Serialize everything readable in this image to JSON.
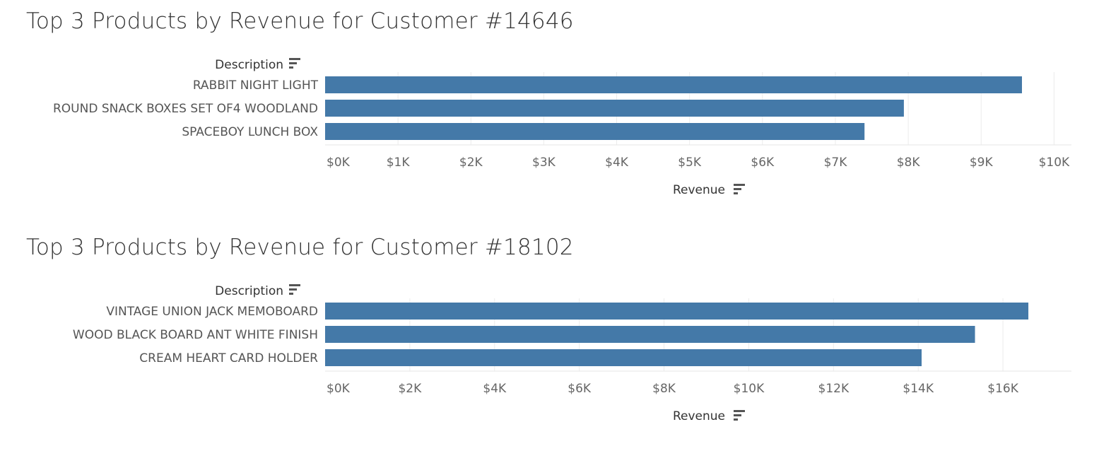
{
  "chart_data": [
    {
      "type": "bar",
      "orientation": "horizontal",
      "title": "Top 3 Products by Revenue for Customer #14646",
      "ylabel": "Description",
      "xlabel": "Revenue",
      "categories": [
        "RABBIT NIGHT LIGHT",
        "ROUND SNACK BOXES SET OF4 WOODLAND",
        "SPACEBOY LUNCH BOX"
      ],
      "values": [
        9560,
        7940,
        7400
      ],
      "xlim": [
        0,
        10200
      ],
      "ticks": [
        0,
        1000,
        2000,
        3000,
        4000,
        5000,
        6000,
        7000,
        8000,
        9000,
        10000
      ],
      "tick_labels": [
        "$0K",
        "$1K",
        "$2K",
        "$3K",
        "$4K",
        "$5K",
        "$6K",
        "$7K",
        "$8K",
        "$9K",
        "$10K"
      ],
      "bar_color": "#4479a8",
      "grid": true
    },
    {
      "type": "bar",
      "orientation": "horizontal",
      "title": "Top 3 Products by Revenue for Customer #18102",
      "ylabel": "Description",
      "xlabel": "Revenue",
      "categories": [
        "VINTAGE UNION JACK MEMOBOARD",
        "WOOD BLACK BOARD ANT WHITE FINISH",
        "CREAM HEART CARD HOLDER"
      ],
      "values": [
        16600,
        15340,
        14080
      ],
      "xlim": [
        0,
        17550
      ],
      "ticks": [
        0,
        2000,
        4000,
        6000,
        8000,
        10000,
        12000,
        14000,
        16000
      ],
      "tick_labels": [
        "$0K",
        "$2K",
        "$4K",
        "$6K",
        "$8K",
        "$10K",
        "$12K",
        "$14K",
        "$16K"
      ],
      "bar_color": "#4479a8",
      "grid": true
    }
  ]
}
